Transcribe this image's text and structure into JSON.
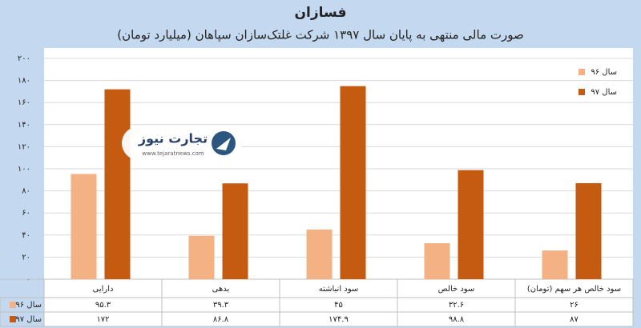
{
  "chart_data": {
    "type": "bar",
    "title": "فسازان",
    "subtitle": "صورت مالی منتهی به پایان سال ۱۳۹۷ شرکت غلتک‌سازان سپاهان (میلیارد تومان)",
    "watermark": {
      "brand": "تجارت نیوز",
      "url": "www.tejaratnews.com"
    },
    "categories": [
      "دارایی",
      "بدهی",
      "سود انباشته",
      "سود خالص",
      "سود خالص هر سهم (تومان)"
    ],
    "series": [
      {
        "name": "سال ۹۶",
        "color": "#f4b183",
        "values": [
          95.3,
          39.3,
          45,
          32.6,
          26
        ],
        "value_labels": [
          "۹۵.۳",
          "۳۹.۳",
          "۴۵",
          "۳۲.۶",
          "۲۶"
        ]
      },
      {
        "name": "سال ۹۷",
        "color": "#c55a11",
        "values": [
          172,
          86.8,
          174.9,
          98.8,
          87
        ],
        "value_labels": [
          "۱۷۲",
          "۸۶.۸",
          "۱۷۴.۹",
          "۹۸.۸",
          "۸۷"
        ]
      }
    ],
    "ylim": [
      0,
      200
    ],
    "yticks": [
      {
        "value": 0,
        "label": "۰"
      },
      {
        "value": 20,
        "label": "۲۰"
      },
      {
        "value": 40,
        "label": "۴۰"
      },
      {
        "value": 60,
        "label": "۶۰"
      },
      {
        "value": 80,
        "label": "۸۰"
      },
      {
        "value": 100,
        "label": "۱۰۰"
      },
      {
        "value": 120,
        "label": "۱۲۰"
      },
      {
        "value": 140,
        "label": "۱۴۰"
      },
      {
        "value": 160,
        "label": "۱۶۰"
      },
      {
        "value": 180,
        "label": "۱۸۰"
      },
      {
        "value": 200,
        "label": "۲۰۰"
      }
    ],
    "grid": true,
    "legend": "top-right"
  }
}
